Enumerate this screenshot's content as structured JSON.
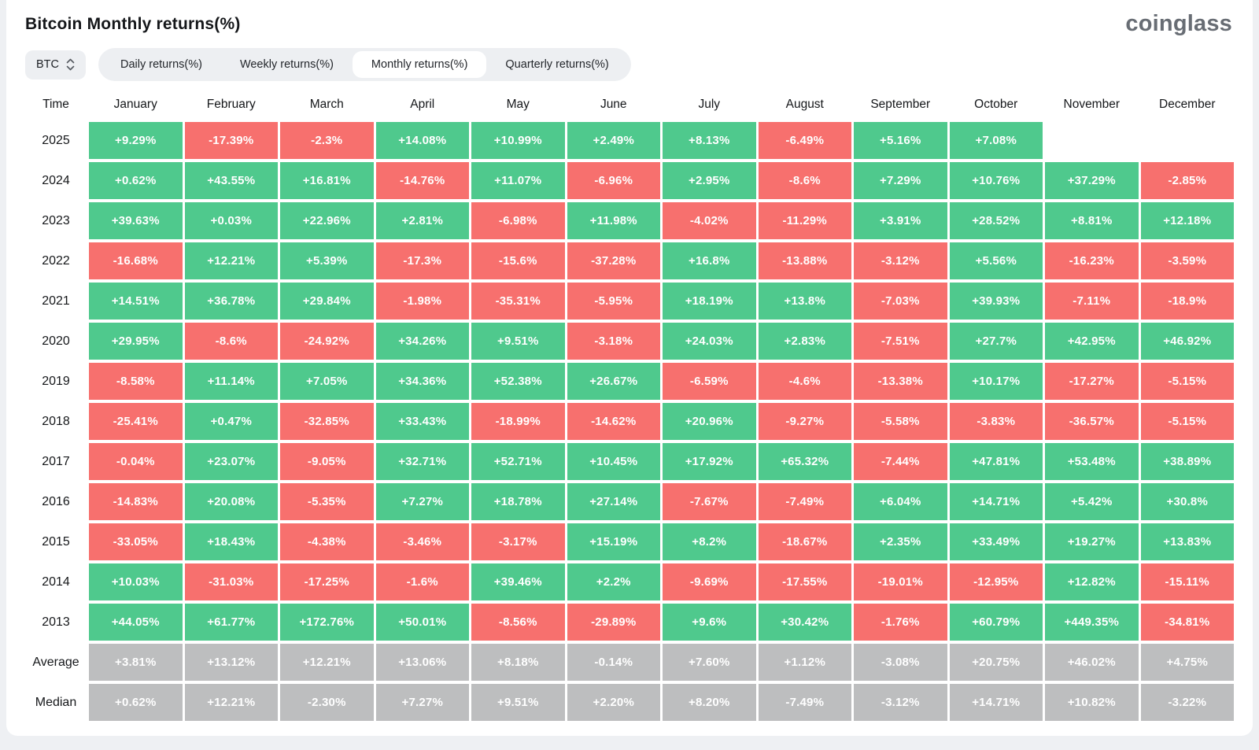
{
  "page": {
    "title": "Bitcoin Monthly returns(%)",
    "logo": "coinglass"
  },
  "controls": {
    "symbol_selector": {
      "value": "BTC"
    },
    "tabs": [
      {
        "label": "Daily returns(%)",
        "active": false
      },
      {
        "label": "Weekly returns(%)",
        "active": false
      },
      {
        "label": "Monthly returns(%)",
        "active": true
      },
      {
        "label": "Quarterly returns(%)",
        "active": false
      }
    ]
  },
  "colors": {
    "positive": "#4fc98d",
    "negative": "#f7706e",
    "neutral": "#bdbebf"
  },
  "table": {
    "corner_label": "Time",
    "months": [
      "January",
      "February",
      "March",
      "April",
      "May",
      "June",
      "July",
      "August",
      "September",
      "October",
      "November",
      "December"
    ],
    "rows": [
      {
        "label": "2025",
        "type": "year",
        "values": [
          "+9.29%",
          "-17.39%",
          "-2.3%",
          "+14.08%",
          "+10.99%",
          "+2.49%",
          "+8.13%",
          "-6.49%",
          "+5.16%",
          "+7.08%",
          null,
          null
        ]
      },
      {
        "label": "2024",
        "type": "year",
        "values": [
          "+0.62%",
          "+43.55%",
          "+16.81%",
          "-14.76%",
          "+11.07%",
          "-6.96%",
          "+2.95%",
          "-8.6%",
          "+7.29%",
          "+10.76%",
          "+37.29%",
          "-2.85%"
        ]
      },
      {
        "label": "2023",
        "type": "year",
        "values": [
          "+39.63%",
          "+0.03%",
          "+22.96%",
          "+2.81%",
          "-6.98%",
          "+11.98%",
          "-4.02%",
          "-11.29%",
          "+3.91%",
          "+28.52%",
          "+8.81%",
          "+12.18%"
        ]
      },
      {
        "label": "2022",
        "type": "year",
        "values": [
          "-16.68%",
          "+12.21%",
          "+5.39%",
          "-17.3%",
          "-15.6%",
          "-37.28%",
          "+16.8%",
          "-13.88%",
          "-3.12%",
          "+5.56%",
          "-16.23%",
          "-3.59%"
        ]
      },
      {
        "label": "2021",
        "type": "year",
        "values": [
          "+14.51%",
          "+36.78%",
          "+29.84%",
          "-1.98%",
          "-35.31%",
          "-5.95%",
          "+18.19%",
          "+13.8%",
          "-7.03%",
          "+39.93%",
          "-7.11%",
          "-18.9%"
        ]
      },
      {
        "label": "2020",
        "type": "year",
        "values": [
          "+29.95%",
          "-8.6%",
          "-24.92%",
          "+34.26%",
          "+9.51%",
          "-3.18%",
          "+24.03%",
          "+2.83%",
          "-7.51%",
          "+27.7%",
          "+42.95%",
          "+46.92%"
        ]
      },
      {
        "label": "2019",
        "type": "year",
        "values": [
          "-8.58%",
          "+11.14%",
          "+7.05%",
          "+34.36%",
          "+52.38%",
          "+26.67%",
          "-6.59%",
          "-4.6%",
          "-13.38%",
          "+10.17%",
          "-17.27%",
          "-5.15%"
        ]
      },
      {
        "label": "2018",
        "type": "year",
        "values": [
          "-25.41%",
          "+0.47%",
          "-32.85%",
          "+33.43%",
          "-18.99%",
          "-14.62%",
          "+20.96%",
          "-9.27%",
          "-5.58%",
          "-3.83%",
          "-36.57%",
          "-5.15%"
        ]
      },
      {
        "label": "2017",
        "type": "year",
        "values": [
          "-0.04%",
          "+23.07%",
          "-9.05%",
          "+32.71%",
          "+52.71%",
          "+10.45%",
          "+17.92%",
          "+65.32%",
          "-7.44%",
          "+47.81%",
          "+53.48%",
          "+38.89%"
        ]
      },
      {
        "label": "2016",
        "type": "year",
        "values": [
          "-14.83%",
          "+20.08%",
          "-5.35%",
          "+7.27%",
          "+18.78%",
          "+27.14%",
          "-7.67%",
          "-7.49%",
          "+6.04%",
          "+14.71%",
          "+5.42%",
          "+30.8%"
        ]
      },
      {
        "label": "2015",
        "type": "year",
        "values": [
          "-33.05%",
          "+18.43%",
          "-4.38%",
          "-3.46%",
          "-3.17%",
          "+15.19%",
          "+8.2%",
          "-18.67%",
          "+2.35%",
          "+33.49%",
          "+19.27%",
          "+13.83%"
        ]
      },
      {
        "label": "2014",
        "type": "year",
        "values": [
          "+10.03%",
          "-31.03%",
          "-17.25%",
          "-1.6%",
          "+39.46%",
          "+2.2%",
          "-9.69%",
          "-17.55%",
          "-19.01%",
          "-12.95%",
          "+12.82%",
          "-15.11%"
        ]
      },
      {
        "label": "2013",
        "type": "year",
        "values": [
          "+44.05%",
          "+61.77%",
          "+172.76%",
          "+50.01%",
          "-8.56%",
          "-29.89%",
          "+9.6%",
          "+30.42%",
          "-1.76%",
          "+60.79%",
          "+449.35%",
          "-34.81%"
        ]
      },
      {
        "label": "Average",
        "type": "stat",
        "values": [
          "+3.81%",
          "+13.12%",
          "+12.21%",
          "+13.06%",
          "+8.18%",
          "-0.14%",
          "+7.60%",
          "+1.12%",
          "-3.08%",
          "+20.75%",
          "+46.02%",
          "+4.75%"
        ]
      },
      {
        "label": "Median",
        "type": "stat",
        "values": [
          "+0.62%",
          "+12.21%",
          "-2.30%",
          "+7.27%",
          "+9.51%",
          "+2.20%",
          "+8.20%",
          "-7.49%",
          "-3.12%",
          "+14.71%",
          "+10.82%",
          "-3.22%"
        ]
      }
    ]
  }
}
